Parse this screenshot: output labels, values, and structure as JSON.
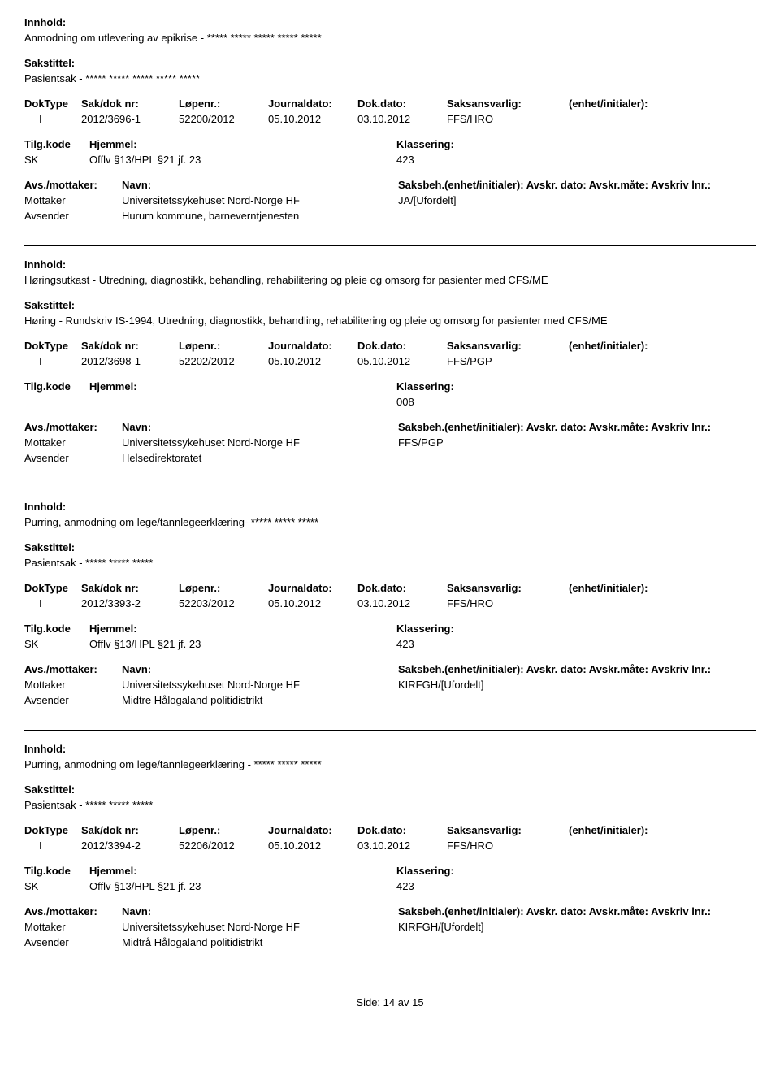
{
  "labels": {
    "innhold": "Innhold:",
    "sakstittel": "Sakstittel:",
    "doktype": "DokType",
    "sakdoknr": "Sak/dok nr:",
    "lopenr": "Løpenr.:",
    "journaldato": "Journaldato:",
    "dokdato": "Dok.dato:",
    "saksansvarlig": "Saksansvarlig:",
    "enhet": "(enhet/initialer):",
    "tilgkode": "Tilg.kode",
    "hjemmel": "Hjemmel:",
    "klassering": "Klassering:",
    "avsmottaker": "Avs./mottaker:",
    "navn": "Navn:",
    "saksbeh": "Saksbeh.(enhet/initialer):",
    "avskr": "Avskr. dato:",
    "avskrmate": "Avskr.måte:",
    "avskrivlnr": "Avskriv lnr.:",
    "mottaker": "Mottaker",
    "avsender": "Avsender"
  },
  "records": [
    {
      "innhold": "Anmodning om utlevering av epikrise - ***** ***** ***** ***** *****",
      "sakstittel": "Pasientsak - ***** ***** ***** ***** *****",
      "doktype": "I",
      "sakdoknr": "2012/3696-1",
      "lopenr": "52200/2012",
      "journaldato": "05.10.2012",
      "dokdato": "03.10.2012",
      "saksansvarlig": "FFS/HRO",
      "tilgkode": "SK",
      "hjemmel": "Offlv §13/HPL §21 jf. 23",
      "klassering": "423",
      "mottaker_navn": "Universitetssykehuset Nord-Norge HF",
      "mottaker_saksbeh": "JA/[Ufordelt]",
      "avsender_navn": "Hurum kommune, barneverntjenesten",
      "show_avs_header": false
    },
    {
      "innhold": "Høringsutkast  - Utredning, diagnostikk, behandling, rehabilitering og pleie og omsorg for pasienter med CFS/ME",
      "sakstittel": "Høring - Rundskriv IS-1994, Utredning, diagnostikk, behandling, rehabilitering og pleie og omsorg for pasienter med CFS/ME",
      "doktype": "I",
      "sakdoknr": "2012/3698-1",
      "lopenr": "52202/2012",
      "journaldato": "05.10.2012",
      "dokdato": "05.10.2012",
      "saksansvarlig": "FFS/PGP",
      "tilgkode": "",
      "hjemmel": "",
      "klassering": "008",
      "mottaker_navn": "Universitetssykehuset Nord-Norge HF",
      "mottaker_saksbeh": "FFS/PGP",
      "avsender_navn": "Helsedirektoratet",
      "show_avs_header": false
    },
    {
      "innhold": "Purring, anmodning om lege/tannlegeerklæring- ***** ***** *****",
      "sakstittel": "Pasientsak - ***** ***** *****",
      "doktype": "I",
      "sakdoknr": "2012/3393-2",
      "lopenr": "52203/2012",
      "journaldato": "05.10.2012",
      "dokdato": "03.10.2012",
      "saksansvarlig": "FFS/HRO",
      "tilgkode": "SK",
      "hjemmel": "Offlv §13/HPL §21 jf. 23",
      "klassering": "423",
      "mottaker_navn": "Universitetssykehuset Nord-Norge HF",
      "mottaker_saksbeh": "KIRFGH/[Ufordelt]",
      "avsender_navn": "Midtre Hålogaland politidistrikt",
      "show_avs_header": true
    },
    {
      "innhold": "Purring, anmodning om lege/tannlegeerklæring - ***** ***** *****",
      "sakstittel": "Pasientsak - ***** ***** *****",
      "doktype": "I",
      "sakdoknr": "2012/3394-2",
      "lopenr": "52206/2012",
      "journaldato": "05.10.2012",
      "dokdato": "03.10.2012",
      "saksansvarlig": "FFS/HRO",
      "tilgkode": "SK",
      "hjemmel": "Offlv §13/HPL §21 jf. 23",
      "klassering": "423",
      "mottaker_navn": "Universitetssykehuset Nord-Norge HF",
      "mottaker_saksbeh": "KIRFGH/[Ufordelt]",
      "avsender_navn": "Midtrå Hålogaland politidistrikt",
      "show_avs_header": true
    }
  ],
  "footer": {
    "side_label": "Side:",
    "page": "14",
    "av": "av",
    "total": "15"
  }
}
